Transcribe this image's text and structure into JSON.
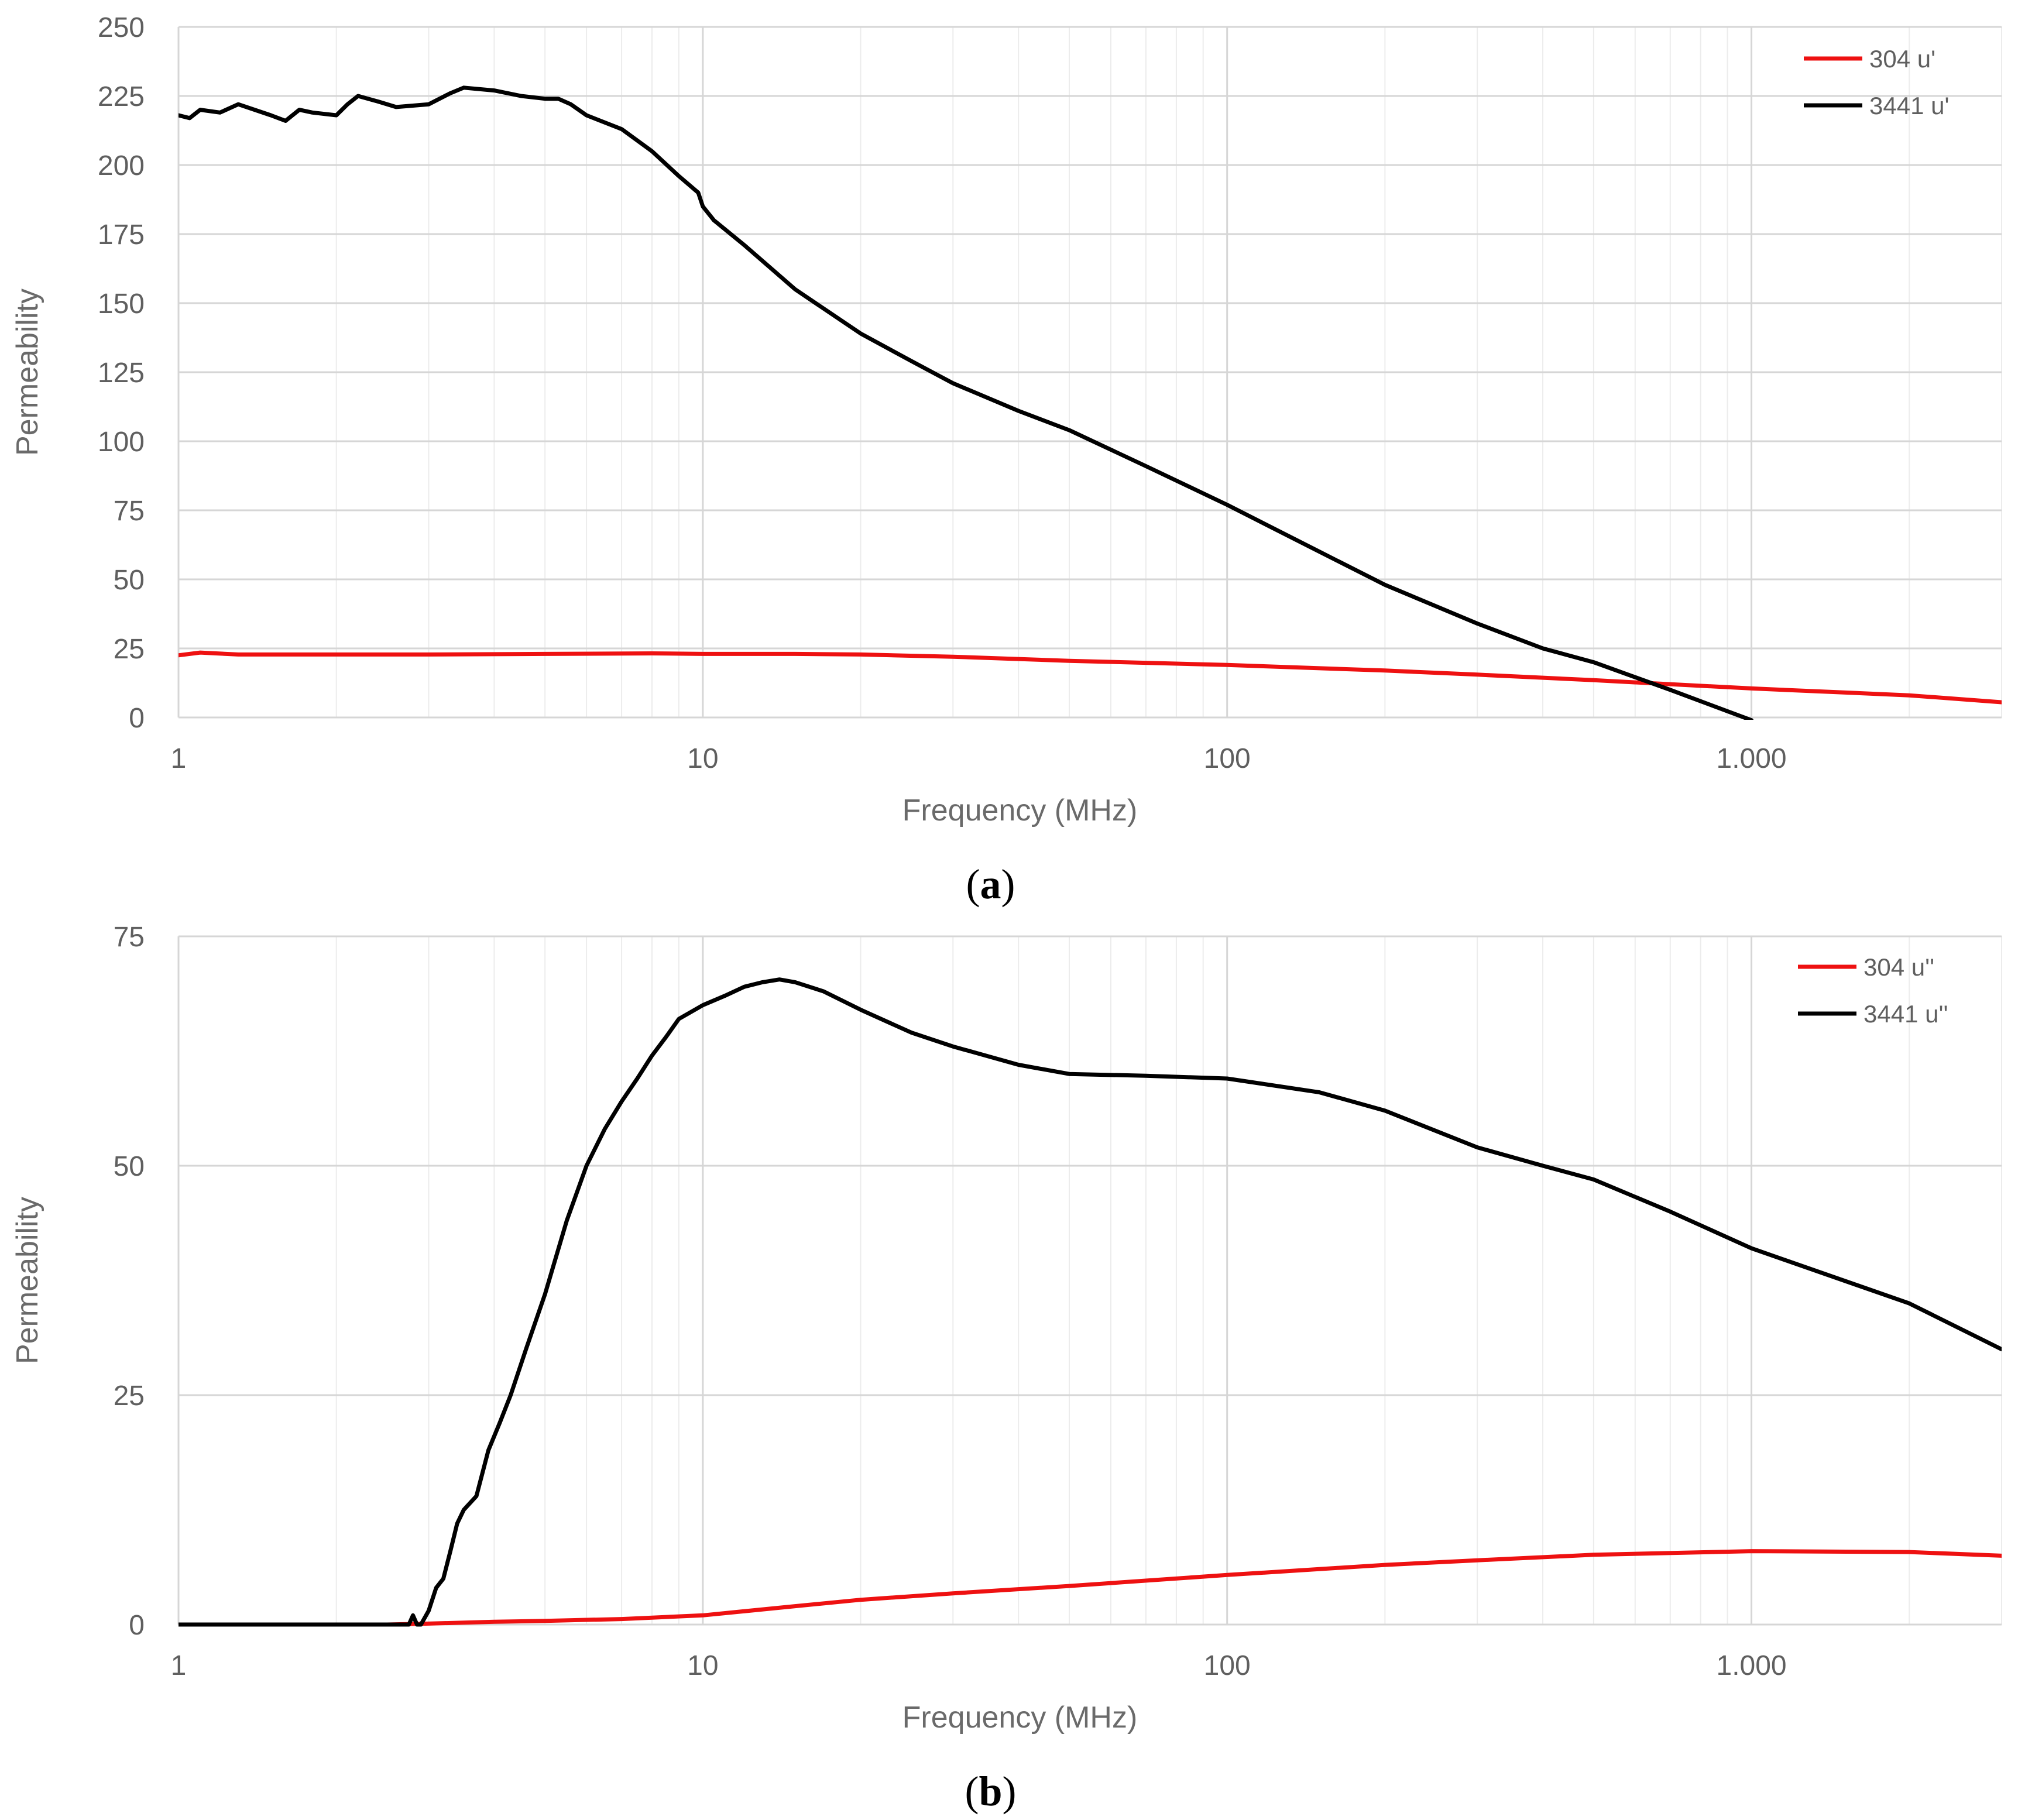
{
  "colors": {
    "red": "#ee1111",
    "black": "#000000",
    "grid_major": "#d6d6d6",
    "grid_minor": "#ececec",
    "tick_text": "#5f5f5f"
  },
  "chart_data": [
    {
      "type": "line",
      "caption": "a",
      "xlabel": "Frequency (MHz)",
      "ylabel": "Permeability",
      "x_scale": "log",
      "xlim": [
        1,
        3000
      ],
      "ylim": [
        0,
        250
      ],
      "x_ticks": [
        1,
        10,
        100,
        1000
      ],
      "x_tick_labels": [
        "1",
        "10",
        "100",
        "1.000"
      ],
      "y_ticks": [
        0,
        25,
        50,
        75,
        100,
        125,
        150,
        175,
        200,
        225,
        250
      ],
      "y_tick_labels": [
        "0",
        "25",
        "50",
        "75",
        "100",
        "125",
        "150",
        "175",
        "200",
        "225",
        "250"
      ],
      "grid": true,
      "legend": "top-right",
      "series": [
        {
          "name": "304 u'",
          "color": "#ee1111",
          "x": [
            1,
            1.1,
            1.3,
            2,
            3,
            5,
            8,
            10,
            15,
            20,
            30,
            50,
            100,
            200,
            300,
            500,
            1000,
            2000,
            3000
          ],
          "y": [
            22.5,
            23.5,
            22.8,
            22.8,
            22.8,
            23,
            23.2,
            23,
            23,
            22.8,
            22,
            20.5,
            19,
            17,
            15.5,
            13.5,
            10.5,
            8,
            5.5
          ]
        },
        {
          "name": "3441 u'",
          "color": "#000000",
          "x": [
            1,
            1.05,
            1.1,
            1.2,
            1.3,
            1.5,
            1.6,
            1.7,
            1.8,
            2,
            2.1,
            2.2,
            2.4,
            2.6,
            3,
            3.3,
            3.5,
            4,
            4.5,
            5,
            5.3,
            5.6,
            6,
            7,
            8,
            9,
            9.8,
            10,
            10.5,
            12,
            15,
            20,
            25,
            30,
            40,
            50,
            70,
            100,
            150,
            200,
            300,
            400,
            500,
            700,
            1000
          ],
          "y": [
            218,
            217,
            220,
            219,
            222,
            218,
            216,
            220,
            219,
            218,
            222,
            225,
            223,
            221,
            222,
            226,
            228,
            227,
            225,
            224,
            224,
            222,
            218,
            213,
            205,
            196,
            190,
            185,
            180,
            171,
            155,
            139,
            129,
            121,
            111,
            104,
            91,
            77,
            60,
            48,
            34,
            25,
            20,
            10,
            -1
          ]
        }
      ]
    },
    {
      "type": "line",
      "caption": "b",
      "xlabel": "Frequency (MHz)",
      "ylabel": "Permeability",
      "x_scale": "log",
      "xlim": [
        1,
        3000
      ],
      "ylim": [
        0,
        75
      ],
      "x_ticks": [
        1,
        10,
        100,
        1000
      ],
      "x_tick_labels": [
        "1",
        "10",
        "100",
        "1.000"
      ],
      "y_ticks": [
        0,
        25,
        50,
        75
      ],
      "y_tick_labels": [
        "0",
        "25",
        "50",
        "75"
      ],
      "grid": true,
      "legend": "top-right",
      "series": [
        {
          "name": "304 u''",
          "color": "#ee1111",
          "x": [
            1.45,
            2,
            2.5,
            3,
            4,
            5,
            7,
            10,
            15,
            20,
            30,
            50,
            100,
            200,
            300,
            500,
            1000,
            2000,
            3000
          ],
          "y": [
            0,
            0,
            0,
            0.1,
            0.3,
            0.4,
            0.6,
            1,
            2,
            2.7,
            3.4,
            4.2,
            5.4,
            6.5,
            7,
            7.6,
            8,
            7.9,
            7.5
          ]
        },
        {
          "name": "3441 u''",
          "color": "#000000",
          "x": [
            1,
            1.45,
            2.75,
            2.8,
            2.85,
            2.9,
            3,
            3.1,
            3.2,
            3.3,
            3.4,
            3.5,
            3.7,
            3.9,
            4.1,
            4.3,
            4.6,
            5,
            5.5,
            6,
            6.5,
            7,
            7.5,
            8,
            8.5,
            9,
            10,
            11,
            12,
            13,
            14,
            15,
            17,
            20,
            25,
            30,
            40,
            50,
            70,
            100,
            150,
            200,
            300,
            400,
            500,
            700,
            1000,
            2000,
            3000
          ],
          "y": [
            0,
            0,
            0,
            1,
            0,
            0,
            1.5,
            4,
            5,
            8,
            11,
            12.5,
            14,
            19,
            22,
            25,
            30,
            36,
            44,
            50,
            54,
            57,
            59.5,
            62,
            64,
            66,
            67.5,
            68.5,
            69.5,
            70,
            70.3,
            70,
            69,
            67,
            64.5,
            63,
            61,
            60,
            59.8,
            59.5,
            58,
            56,
            52,
            50,
            48.5,
            45,
            41,
            35,
            30
          ]
        }
      ]
    }
  ]
}
